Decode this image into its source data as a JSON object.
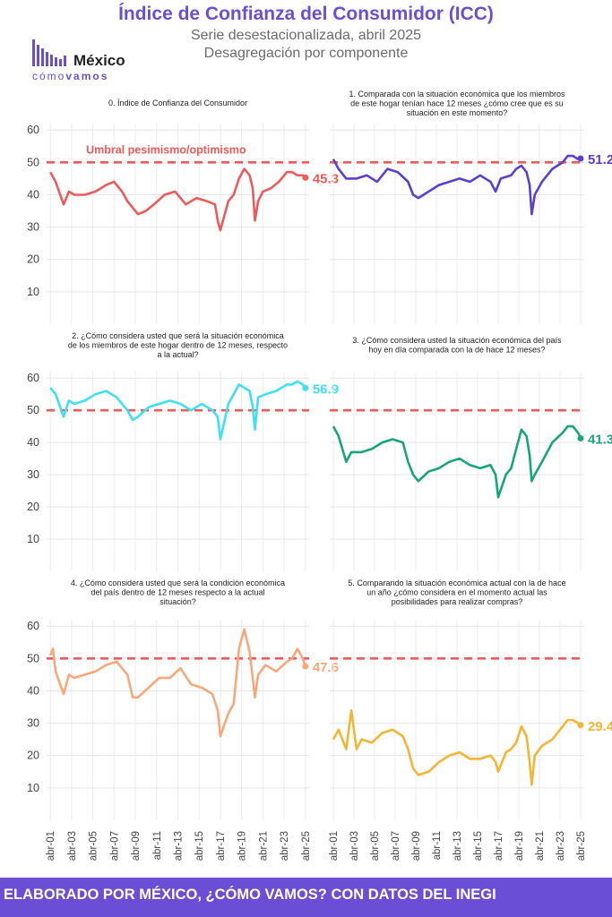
{
  "header": {
    "title": "Índice de Confianza del Consumidor (ICC)",
    "subtitle1": "Serie desestacionalizada, abril 2025",
    "subtitle2": "Desagregación por componente"
  },
  "logo": {
    "word": "México",
    "sub_a": "cómo",
    "sub_b": "vamos"
  },
  "footer": {
    "text": "ELABORADO POR MÉXICO, ¿CÓMO VAMOS? CON DATOS DEL INEGI"
  },
  "colors": {
    "accent": "#6a4fd6",
    "threshold": "#ee5a5a"
  },
  "chart_data": [
    {
      "type": "line",
      "title": "0. Índice de Confianza del Consumidor",
      "color": "#ee5a5a",
      "end_label": "45.3",
      "threshold": 50,
      "threshold_label": "Umbral pesimismo/optimismo",
      "ylim": [
        0,
        62
      ],
      "yticks": [
        10,
        20,
        30,
        40,
        50,
        60
      ],
      "series": [
        {
          "x": [
            2001.25,
            2001.75,
            2002.5,
            2003.0,
            2003.5,
            2004.5,
            2005.5,
            2006.5,
            2007.25,
            2008.0,
            2008.5,
            2009.0,
            2009.5,
            2010.25,
            2011.0,
            2012.0,
            2013.0,
            2014.0,
            2014.5,
            2015.0,
            2016.0,
            2016.75,
            2017.0,
            2017.25,
            2018.0,
            2018.5,
            2019.0,
            2019.5,
            2020.0,
            2020.3,
            2020.5,
            2020.8,
            2021.25,
            2022.0,
            2022.75,
            2023.5,
            2024.0,
            2024.5,
            2025.0,
            2025.25
          ],
          "y": [
            47,
            44,
            37,
            41,
            40,
            40,
            41,
            43,
            44,
            41,
            38,
            36,
            34,
            35,
            37,
            40,
            41,
            37,
            38,
            39,
            38,
            37,
            32,
            29,
            38,
            40,
            45,
            48,
            46,
            42,
            32,
            38,
            41,
            42,
            44,
            47,
            47,
            46,
            46,
            45.3
          ]
        }
      ]
    },
    {
      "type": "line",
      "title": "1. Comparada con la situación económica que los miembros de este hogar tenían hace 12 meses ¿cómo cree que es su situación en este momento?",
      "color": "#5b3fd0",
      "end_label": "51.2",
      "threshold": 50,
      "ylim": [
        0,
        62
      ],
      "yticks": [
        10,
        20,
        30,
        40,
        50,
        60
      ],
      "series": [
        {
          "x": [
            2001.25,
            2001.75,
            2002.5,
            2003.5,
            2004.5,
            2005.5,
            2006.5,
            2007.5,
            2008.5,
            2009.0,
            2009.5,
            2010.5,
            2011.5,
            2012.5,
            2013.5,
            2014.5,
            2015.5,
            2016.5,
            2017.0,
            2017.5,
            2018.5,
            2019.0,
            2019.5,
            2020.0,
            2020.3,
            2020.5,
            2020.8,
            2021.5,
            2022.5,
            2023.5,
            2024.0,
            2024.5,
            2025.0,
            2025.25
          ],
          "y": [
            51,
            48,
            45,
            45,
            46,
            44,
            48,
            47,
            44,
            40,
            39,
            41,
            43,
            44,
            45,
            44,
            46,
            44,
            41,
            45,
            46,
            48,
            49,
            47,
            43,
            34,
            40,
            44,
            48,
            50,
            52,
            52,
            51,
            51.2
          ]
        }
      ]
    },
    {
      "type": "line",
      "title": "2. ¿Cómo considera usted que será la situación económica de los miembros de este hogar dentro de 12 meses, respecto a la actual?",
      "color": "#3ee0f4",
      "end_label": "56.9",
      "threshold": 50,
      "ylim": [
        0,
        62
      ],
      "yticks": [
        10,
        20,
        30,
        40,
        50,
        60
      ],
      "series": [
        {
          "x": [
            2001.25,
            2001.75,
            2002.5,
            2003.0,
            2003.5,
            2004.5,
            2005.5,
            2006.5,
            2007.5,
            2008.5,
            2009.0,
            2009.5,
            2010.5,
            2011.5,
            2012.5,
            2013.5,
            2014.5,
            2015.5,
            2016.5,
            2017.0,
            2017.25,
            2018.0,
            2018.5,
            2019.0,
            2019.5,
            2020.0,
            2020.3,
            2020.5,
            2020.8,
            2021.5,
            2022.5,
            2023.5,
            2024.0,
            2024.5,
            2025.0,
            2025.25
          ],
          "y": [
            57,
            55,
            48,
            53,
            52,
            53,
            55,
            56,
            54,
            50,
            47,
            48,
            51,
            52,
            53,
            52,
            50,
            52,
            50,
            48,
            41,
            52,
            55,
            58,
            57,
            56,
            51,
            44,
            54,
            55,
            56,
            58,
            58,
            59,
            58,
            56.9
          ]
        }
      ]
    },
    {
      "type": "line",
      "title": "3. ¿Cómo considera usted la situación económica del país hoy en día comparada con la de hace 12 meses?",
      "color": "#17a57a",
      "end_label": "41.3",
      "threshold": 50,
      "ylim": [
        0,
        62
      ],
      "yticks": [
        10,
        20,
        30,
        40,
        50,
        60
      ],
      "series": [
        {
          "x": [
            2001.25,
            2001.75,
            2002.5,
            2003.0,
            2004.0,
            2005.0,
            2006.0,
            2007.0,
            2008.0,
            2008.5,
            2009.0,
            2009.5,
            2010.5,
            2011.5,
            2012.5,
            2013.5,
            2014.5,
            2015.5,
            2016.5,
            2017.0,
            2017.25,
            2018.0,
            2018.5,
            2019.0,
            2019.5,
            2020.0,
            2020.3,
            2020.5,
            2020.8,
            2021.5,
            2022.5,
            2023.5,
            2024.0,
            2024.5,
            2025.0,
            2025.25
          ],
          "y": [
            45,
            42,
            34,
            37,
            37,
            38,
            40,
            41,
            40,
            34,
            30,
            28,
            31,
            32,
            34,
            35,
            33,
            32,
            33,
            30,
            23,
            30,
            32,
            38,
            44,
            42,
            36,
            28,
            30,
            34,
            40,
            43,
            45,
            45,
            43,
            41.3
          ]
        }
      ]
    },
    {
      "type": "line",
      "title": "4. ¿Cómo considera usted que será la condición económica del país dentro de 12 meses respecto a la actual situación?",
      "color": "#f7a77a",
      "end_label": "47.6",
      "threshold": 50,
      "ylim": [
        0,
        62
      ],
      "yticks": [
        10,
        20,
        30,
        40,
        50,
        60
      ],
      "series": [
        {
          "x": [
            2001.25,
            2001.5,
            2001.75,
            2002.5,
            2003.0,
            2003.5,
            2004.5,
            2005.5,
            2006.5,
            2007.5,
            2008.5,
            2009.0,
            2009.5,
            2010.5,
            2011.5,
            2012.5,
            2013.5,
            2014.5,
            2015.5,
            2016.5,
            2017.0,
            2017.25,
            2018.0,
            2018.5,
            2019.0,
            2019.5,
            2020.0,
            2020.3,
            2020.5,
            2020.8,
            2021.5,
            2022.5,
            2023.5,
            2024.0,
            2024.5,
            2025.0,
            2025.25
          ],
          "y": [
            51,
            53,
            46,
            39,
            45,
            44,
            45,
            46,
            48,
            49,
            45,
            38,
            38,
            41,
            44,
            44,
            47,
            42,
            41,
            39,
            34,
            26,
            33,
            36,
            53,
            59,
            52,
            44,
            38,
            45,
            48,
            46,
            49,
            50,
            53,
            50,
            47.6
          ]
        }
      ]
    },
    {
      "type": "line",
      "title": "5. Comparando la situación económica actual con la de hace un año ¿cómo considera en el momento actual las posibilidades para realizar compras?",
      "color": "#f3b533",
      "end_label": "29.4",
      "threshold": 50,
      "ylim": [
        0,
        62
      ],
      "yticks": [
        10,
        20,
        30,
        40,
        50,
        60
      ],
      "series": [
        {
          "x": [
            2001.25,
            2001.75,
            2002.5,
            2003.0,
            2003.5,
            2004.0,
            2005.0,
            2006.0,
            2007.0,
            2008.0,
            2008.5,
            2009.0,
            2009.5,
            2010.5,
            2011.5,
            2012.5,
            2013.5,
            2014.5,
            2015.5,
            2016.5,
            2017.0,
            2017.25,
            2018.0,
            2018.5,
            2019.0,
            2019.5,
            2020.0,
            2020.3,
            2020.5,
            2020.8,
            2021.5,
            2022.5,
            2023.5,
            2024.0,
            2024.5,
            2025.0,
            2025.25
          ],
          "y": [
            25,
            28,
            22,
            34,
            22,
            25,
            24,
            27,
            28,
            26,
            22,
            16,
            14,
            15,
            18,
            20,
            21,
            19,
            19,
            20,
            18,
            15,
            21,
            22,
            24,
            29,
            26,
            18,
            11,
            20,
            23,
            25,
            29,
            31,
            31,
            30,
            29.4
          ]
        }
      ]
    }
  ],
  "x_axis": {
    "tick_labels": [
      "abr-01",
      "abr-03",
      "abr-05",
      "abr-07",
      "abr-09",
      "abr-11",
      "abr-13",
      "abr-15",
      "abr-17",
      "abr-19",
      "abr-21",
      "abr-23",
      "abr-25"
    ],
    "tick_values": [
      2001.25,
      2003.25,
      2005.25,
      2007.25,
      2009.25,
      2011.25,
      2013.25,
      2015.25,
      2017.25,
      2019.25,
      2021.25,
      2023.25,
      2025.25
    ],
    "xlim": [
      2000.9,
      2025.6
    ]
  }
}
